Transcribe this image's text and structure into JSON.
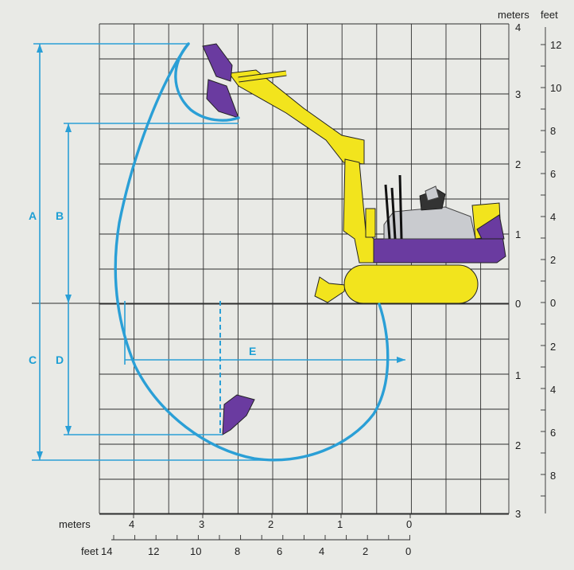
{
  "units": {
    "meters_label": "meters",
    "feet_label": "feet"
  },
  "right_meters_ticks": [
    "4",
    "3",
    "2",
    "1",
    "0",
    "1",
    "2",
    "3"
  ],
  "right_feet_ticks": [
    "12",
    "10",
    "8",
    "6",
    "4",
    "2",
    "0",
    "2",
    "4",
    "6",
    "8"
  ],
  "bottom_meters_ticks": [
    "4",
    "3",
    "2",
    "1",
    "0"
  ],
  "bottom_feet_ticks": [
    "14",
    "12",
    "10",
    "8",
    "6",
    "4",
    "2",
    "0"
  ],
  "dimensions": {
    "a": "A",
    "b": "B",
    "c": "C",
    "d": "D",
    "e": "E"
  },
  "colors": {
    "envelope": "#2a9fd6",
    "machine_yellow": "#f2e41d",
    "machine_purple": "#6a3ba0",
    "cab_gray": "#c9cbcf",
    "grid": "#2d2d2d",
    "background": "#e9eae6"
  }
}
